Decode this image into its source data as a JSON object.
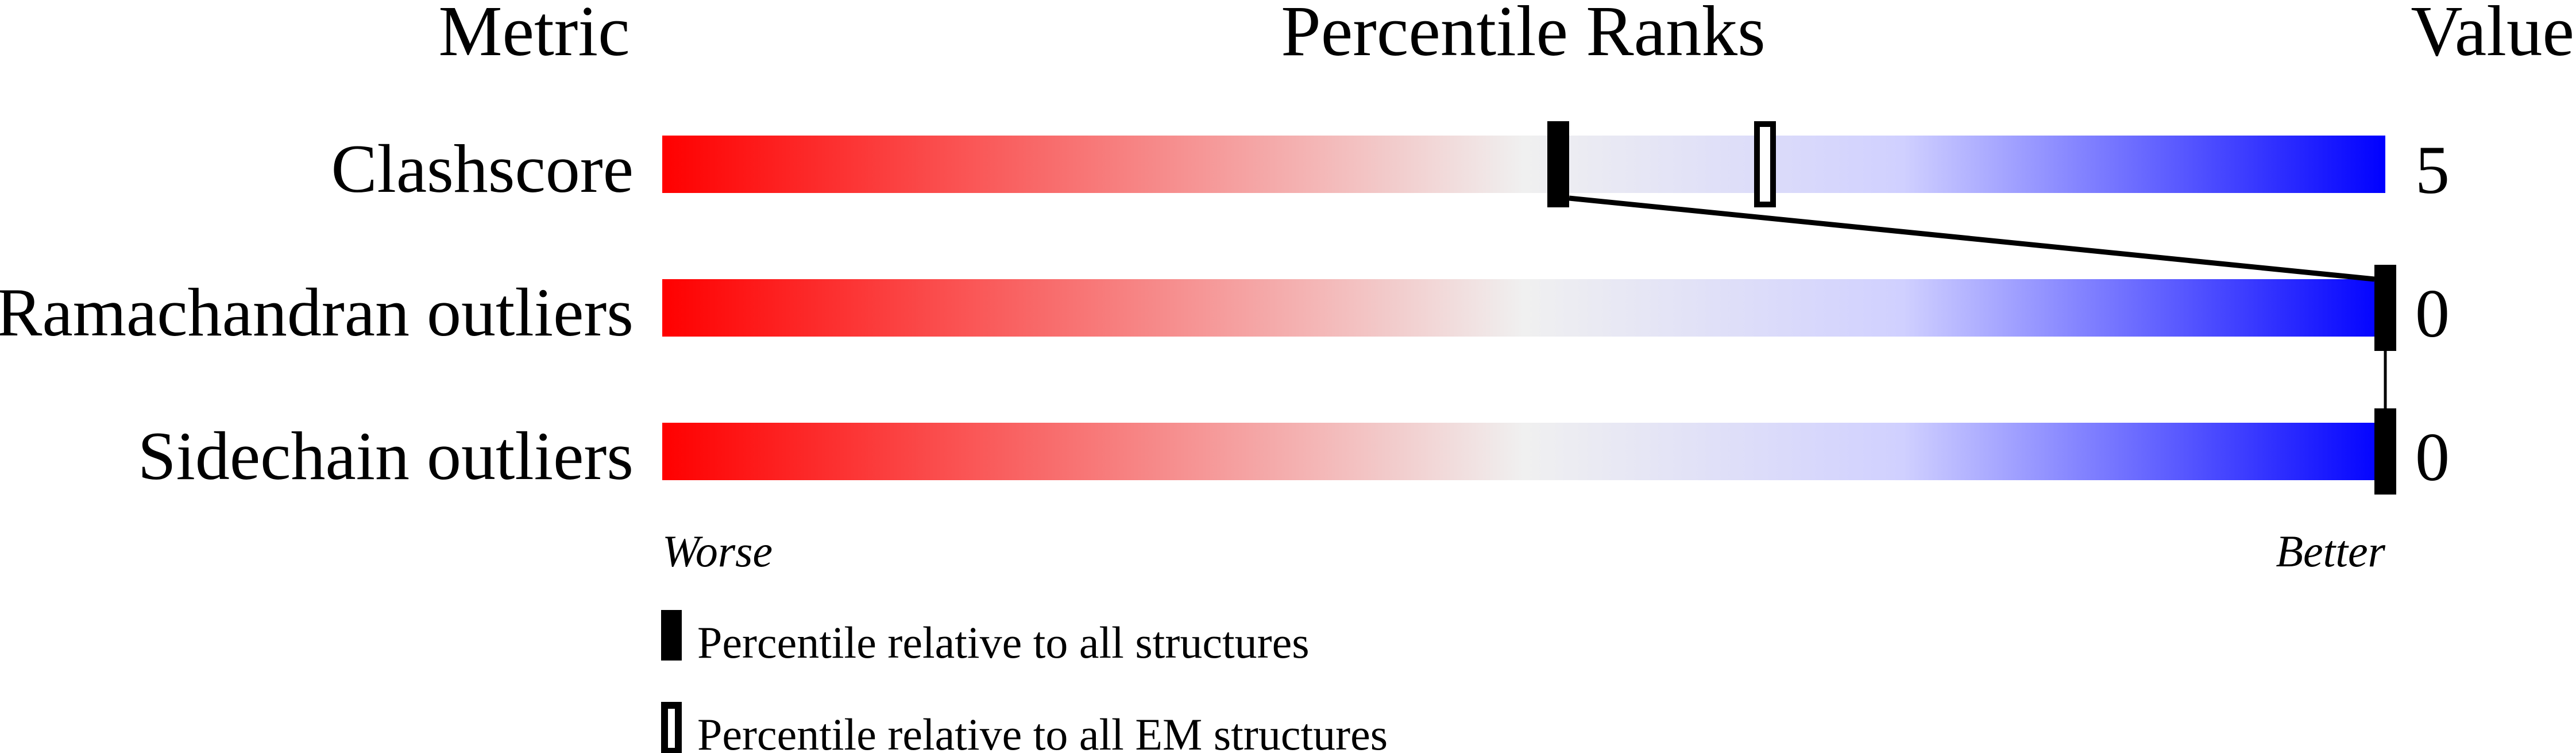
{
  "chart_data": {
    "type": "bar",
    "headers": {
      "metric": "Metric",
      "ranks": "Percentile Ranks",
      "value": "Value"
    },
    "xlim": [
      0,
      100
    ],
    "scale_left_label": "Worse",
    "scale_right_label": "Better",
    "gradient_colors": [
      "#ff0000",
      "#f0f0f0",
      "#d0d0ff",
      "#0000ff"
    ],
    "rows": [
      {
        "metric": "Clashscore",
        "value": "5",
        "percentile_all": 52,
        "percentile_em": 64
      },
      {
        "metric": "Ramachandran outliers",
        "value": "0",
        "percentile_all": 100,
        "percentile_em": null
      },
      {
        "metric": "Sidechain outliers",
        "value": "0",
        "percentile_all": 100,
        "percentile_em": null
      }
    ],
    "legend": [
      {
        "marker": "filled",
        "label": "Percentile relative to all structures"
      },
      {
        "marker": "hollow",
        "label": "Percentile relative to all EM structures"
      }
    ]
  }
}
